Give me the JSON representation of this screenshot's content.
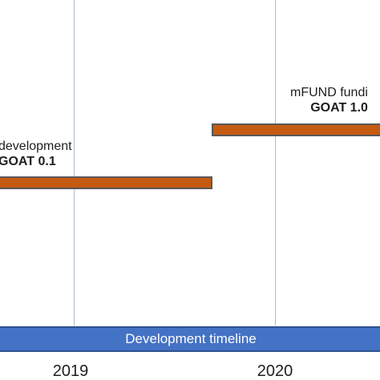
{
  "timeline": {
    "band_label": "Development timeline",
    "band_color": "#4472c4",
    "years": [
      "2019",
      "2020"
    ]
  },
  "phases": [
    {
      "label": "development",
      "version": "GOAT 0.1",
      "bar_color": "#c55a11"
    },
    {
      "label": "mFUND fundi",
      "version": "GOAT 1.0",
      "bar_color": "#c55a11"
    }
  ]
}
